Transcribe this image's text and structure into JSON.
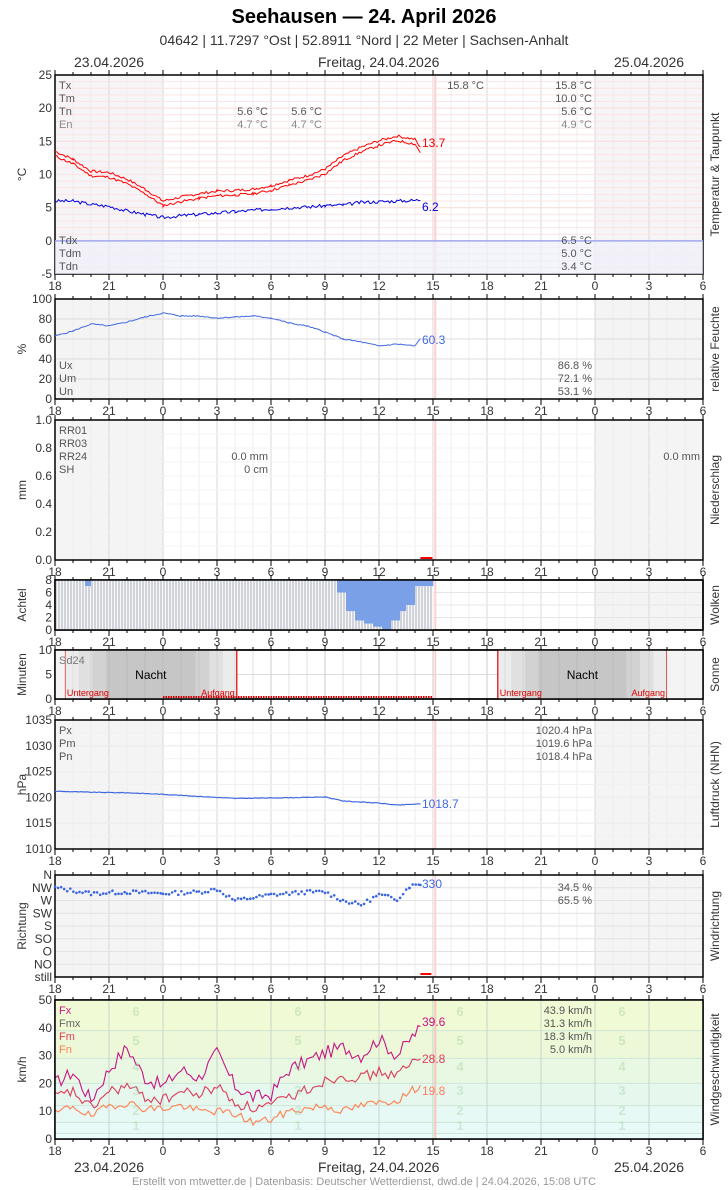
{
  "header": {
    "title": "Seehausen  —  24. April 2026",
    "subtitle": "04642  |  11.7297 °Ost  |  52.8911 °Nord  |  22 Meter  |  Sachsen-Anhalt",
    "date_left": "23.04.2026",
    "date_center": "Freitag, 24.04.2026",
    "date_right": "25.04.2026"
  },
  "footer": "Erstellt von mtwetter.de | Datenbasis: Deutscher Wetterdienst, dwd.de | 24.04.2026, 15:08 UTC",
  "x_ticks": [
    "18",
    "21",
    "0",
    "3",
    "6",
    "9",
    "12",
    "15",
    "18",
    "21",
    "0",
    "3",
    "6"
  ],
  "panels": {
    "temperature": {
      "side_label": "Temperatur & Taupunkt",
      "unit": "°C",
      "y_ticks": [
        "25",
        "20",
        "15",
        "10",
        "5",
        "0",
        "-5"
      ],
      "legend_top": [
        "Tx",
        "Tm",
        "Tn",
        "En"
      ],
      "legend_bottom": [
        "Tdx",
        "Tdm",
        "Tdn"
      ],
      "night_min_tn_1": "5.6 °C",
      "night_min_tn_2": "5.6 °C",
      "night_min_en_1": "4.7 °C",
      "night_min_en_2": "4.7 °C",
      "day_max": "15.8 °C",
      "stats_tx": "15.8 °C",
      "stats_tm": "10.0 °C",
      "stats_tn": "5.6 °C",
      "stats_en": "4.9 °C",
      "stats_tdx": "6.5 °C",
      "stats_tdm": "5.0 °C",
      "stats_tdn": "3.4 °C",
      "current_temp": "13.7",
      "current_dew": "6.2"
    },
    "humidity": {
      "side_label": "relative Feuchte",
      "unit": "%",
      "y_ticks": [
        "100",
        "80",
        "60",
        "40",
        "20",
        "0"
      ],
      "legend": [
        "Ux",
        "Um",
        "Un"
      ],
      "stats": [
        "86.8 %",
        "72.1 %",
        "53.1 %"
      ],
      "current": "60.3"
    },
    "precipitation": {
      "side_label": "Niederschlag",
      "unit": "mm",
      "y_ticks": [
        "1.0",
        "0.8",
        "0.6",
        "0.4",
        "0.2",
        "0.0"
      ],
      "legend": [
        "RR01",
        "RR03",
        "RR24",
        "SH"
      ],
      "rr24_day1": "0.0 mm",
      "sh_day1": "0 cm",
      "rr24_day2": "0.0 mm"
    },
    "clouds": {
      "side_label": "Wolken",
      "unit": "Achtel",
      "y_ticks": [
        "8",
        "6",
        "4",
        "2",
        "0"
      ]
    },
    "sun": {
      "side_label": "Sonne",
      "unit": "Minuten",
      "y_ticks": [
        "10",
        "5",
        "0"
      ],
      "legend": "Sd24",
      "night_label": "Nacht",
      "sunset_label": "Untergang",
      "sunrise_label": "Aufgang"
    },
    "pressure": {
      "side_label": "Luftdruck (NHN)",
      "unit": "hPa",
      "y_ticks": [
        "1035",
        "1030",
        "1025",
        "1020",
        "1015",
        "1010"
      ],
      "legend": [
        "Px",
        "Pm",
        "Pn"
      ],
      "stats": [
        "1020.4 hPa",
        "1019.6 hPa",
        "1018.4 hPa"
      ],
      "current": "1018.7"
    },
    "wind_dir": {
      "side_label": "Windrichtung",
      "unit": "Richtung",
      "y_ticks": [
        "N",
        "NW",
        "W",
        "SW",
        "S",
        "SO",
        "O",
        "NO",
        "still"
      ],
      "stats": [
        "34.5 %",
        "65.5 %"
      ],
      "current": "330"
    },
    "wind_speed": {
      "side_label": "Windgeschwindigkeit",
      "unit": "km/h",
      "y_ticks": [
        "50",
        "40",
        "30",
        "20",
        "10",
        "0"
      ],
      "legend": [
        "Fx",
        "Fmx",
        "Fm",
        "Fn"
      ],
      "stats": [
        "43.9 km/h",
        "31.3 km/h",
        "18.3 km/h",
        "5.0 km/h"
      ],
      "current_fx": "39.6",
      "current_fm": "28.8",
      "current_fn": "19.8",
      "bft": [
        "6",
        "5",
        "4",
        "3",
        "2",
        "1"
      ]
    }
  },
  "chart_data": [
    {
      "type": "line",
      "title": "Temperatur & Taupunkt",
      "ylabel": "°C",
      "ylim": [
        -5,
        25
      ],
      "x": [
        "18",
        "19",
        "20",
        "21",
        "22",
        "23",
        "0",
        "1",
        "2",
        "3",
        "4",
        "5",
        "6",
        "7",
        "8",
        "9",
        "10",
        "11",
        "12",
        "13",
        "14",
        "14.3"
      ],
      "series": [
        {
          "name": "Temperatur",
          "color": "#ff0000",
          "values": [
            13.2,
            12.0,
            10.2,
            10.0,
            9.0,
            7.5,
            5.7,
            6.3,
            6.8,
            7.2,
            7.3,
            7.5,
            8.0,
            8.8,
            9.5,
            10.5,
            12.5,
            13.8,
            14.8,
            15.5,
            15.0,
            13.7
          ]
        },
        {
          "name": "Taupunkt",
          "color": "#0000dd",
          "values": [
            6.0,
            6.0,
            5.5,
            5.2,
            4.5,
            4.0,
            3.5,
            3.8,
            4.0,
            4.2,
            4.4,
            4.6,
            4.8,
            5.0,
            5.1,
            5.3,
            5.4,
            5.8,
            5.9,
            6.0,
            6.1,
            6.2
          ]
        }
      ]
    },
    {
      "type": "line",
      "title": "relative Feuchte",
      "ylabel": "%",
      "ylim": [
        0,
        100
      ],
      "x": [
        "18",
        "19",
        "20",
        "21",
        "22",
        "23",
        "0",
        "1",
        "2",
        "3",
        "4",
        "5",
        "6",
        "7",
        "8",
        "9",
        "10",
        "11",
        "12",
        "13",
        "14",
        "14.3"
      ],
      "series": [
        {
          "name": "Feuchte",
          "color": "#4169e1",
          "values": [
            63,
            68,
            75,
            73,
            77,
            82,
            86,
            83,
            83,
            81,
            82,
            83,
            81,
            76,
            73,
            67,
            60,
            57,
            53,
            55,
            53,
            60.3
          ]
        }
      ]
    },
    {
      "type": "bar",
      "title": "Niederschlag",
      "ylabel": "mm",
      "ylim": [
        0,
        1.0
      ],
      "values": [
        0.0
      ]
    },
    {
      "type": "bar",
      "title": "Wolken",
      "ylabel": "Achtel",
      "ylim": [
        0,
        8
      ],
      "x": [
        "9",
        "9.5",
        "10",
        "10.5",
        "11",
        "11.5",
        "12",
        "12.5",
        "13",
        "13.5",
        "14",
        "14.5",
        "15"
      ],
      "values": [
        8,
        6,
        3,
        1.5,
        1,
        0.5,
        0,
        1.5,
        3,
        4,
        7,
        7,
        7
      ]
    },
    {
      "type": "line",
      "title": "Luftdruck (NHN)",
      "ylabel": "hPa",
      "ylim": [
        1010,
        1035
      ],
      "x": [
        "18",
        "20",
        "22",
        "0",
        "2",
        "4",
        "6",
        "8",
        "9",
        "10",
        "12",
        "13",
        "14",
        "14.3"
      ],
      "series": [
        {
          "name": "Luftdruck",
          "color": "#4169e1",
          "values": [
            1021.2,
            1021.0,
            1020.9,
            1020.6,
            1020.2,
            1019.8,
            1019.9,
            1020.0,
            1020.1,
            1019.3,
            1018.9,
            1018.5,
            1018.7,
            1018.7
          ]
        }
      ]
    },
    {
      "type": "scatter",
      "title": "Windrichtung",
      "ylabel": "Richtung",
      "categories": [
        "still",
        "NO",
        "O",
        "SO",
        "S",
        "SW",
        "W",
        "NW",
        "N"
      ],
      "x": [
        "18",
        "20",
        "22",
        "0",
        "2",
        "3",
        "4",
        "6",
        "8",
        "9",
        "10",
        "11",
        "12",
        "13",
        "13.7",
        "14.3"
      ],
      "values": [
        315,
        295,
        300,
        295,
        300,
        310,
        270,
        290,
        300,
        300,
        270,
        255,
        290,
        275,
        320,
        330
      ]
    },
    {
      "type": "line",
      "title": "Windgeschwindigkeit",
      "ylabel": "km/h",
      "ylim": [
        0,
        50
      ],
      "x": [
        "18",
        "19",
        "20",
        "21",
        "22",
        "23",
        "0",
        "1",
        "2",
        "3",
        "4",
        "5",
        "6",
        "7",
        "8",
        "9",
        "10",
        "11",
        "12",
        "13",
        "14",
        "14.3"
      ],
      "series": [
        {
          "name": "Fx",
          "color": "#c71585",
          "values": [
            20,
            24,
            14,
            25,
            33,
            22,
            19,
            25,
            22,
            31,
            19,
            15,
            16,
            25,
            28,
            31,
            33,
            30,
            36,
            30,
            38,
            39.6
          ]
        },
        {
          "name": "Fm",
          "color": "#dc3c5a",
          "values": [
            15,
            17,
            11,
            17,
            19,
            15,
            14,
            17,
            16,
            19,
            13,
            11,
            12,
            15,
            18,
            21,
            23,
            22,
            24,
            23,
            28,
            28.8
          ]
        },
        {
          "name": "Fn",
          "color": "#ff7f50",
          "values": [
            9,
            12,
            8,
            12,
            13,
            11,
            11,
            12,
            10,
            10,
            9,
            6,
            7,
            10,
            11,
            12,
            10,
            12,
            13,
            14,
            18,
            19.8
          ]
        }
      ]
    }
  ]
}
